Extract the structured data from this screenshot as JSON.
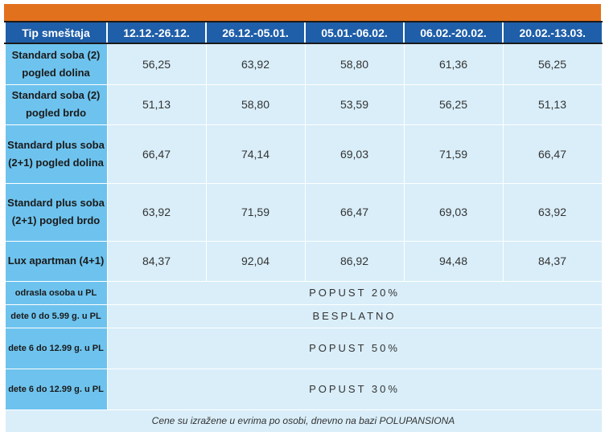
{
  "header": {
    "type_label": "Tip smeštaja",
    "periods": [
      "12.12.-26.12.",
      "26.12.-05.01.",
      "05.01.-06.02.",
      "06.02.-20.02.",
      "20.02.-13.03."
    ]
  },
  "rooms": [
    {
      "label": "Standard soba (2) pogled dolina",
      "prices": [
        "56,25",
        "63,92",
        "58,80",
        "61,36",
        "56,25"
      ]
    },
    {
      "label": "Standard soba (2) pogled brdo",
      "prices": [
        "51,13",
        "58,80",
        "53,59",
        "56,25",
        "51,13"
      ]
    },
    {
      "label": "Standard plus soba (2+1) pogled dolina",
      "prices": [
        "66,47",
        "74,14",
        "69,03",
        "71,59",
        "66,47"
      ]
    },
    {
      "label": "Standard plus soba (2+1) pogled brdo",
      "prices": [
        "63,92",
        "71,59",
        "66,47",
        "69,03",
        "63,92"
      ]
    },
    {
      "label": "Lux apartman (4+1)",
      "prices": [
        "84,37",
        "92,04",
        "86,92",
        "94,48",
        "84,37"
      ]
    }
  ],
  "discounts": [
    {
      "label": "odrasla osoba u PL",
      "value": "POPUST 20%"
    },
    {
      "label": "dete 0 do 5.99 g. u PL",
      "value": "BESPLATNO"
    },
    {
      "label": "dete 6 do 12.99 g. u PL",
      "value": "POPUST 50%"
    },
    {
      "label": "dete 6 do 12.99 g. u PL",
      "value": "POPUST 30%"
    }
  ],
  "footnote": "Cene su izražene u evrima po osobi, dnevno na bazi POLUPANSIONA",
  "colors": {
    "accent_bar": "#e2711d",
    "header_bg": "#1f5ea8",
    "label_bg": "#6ec3ee",
    "cell_bg": "#d9eef9"
  }
}
